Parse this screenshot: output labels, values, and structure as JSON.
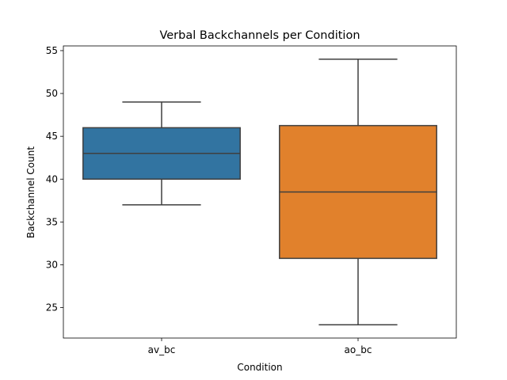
{
  "chart_data": {
    "type": "box",
    "title": "Verbal Backchannels per Condition",
    "xlabel": "Condition",
    "ylabel": "Backchannel Count",
    "ylim": [
      21.45,
      55.55
    ],
    "yticks": [
      25,
      30,
      35,
      40,
      45,
      50,
      55
    ],
    "grid": false,
    "categories": [
      "av_bc",
      "ao_bc"
    ],
    "series": [
      {
        "whisker_low": 37,
        "q1": 40,
        "median": 43,
        "q3": 46,
        "whisker_high": 49,
        "color": "#3274a1"
      },
      {
        "whisker_low": 23,
        "q1": 30.75,
        "median": 38.5,
        "q3": 46.25,
        "whisker_high": 54,
        "color": "#e1812c"
      }
    ],
    "line_color": "#3f3f3f"
  }
}
